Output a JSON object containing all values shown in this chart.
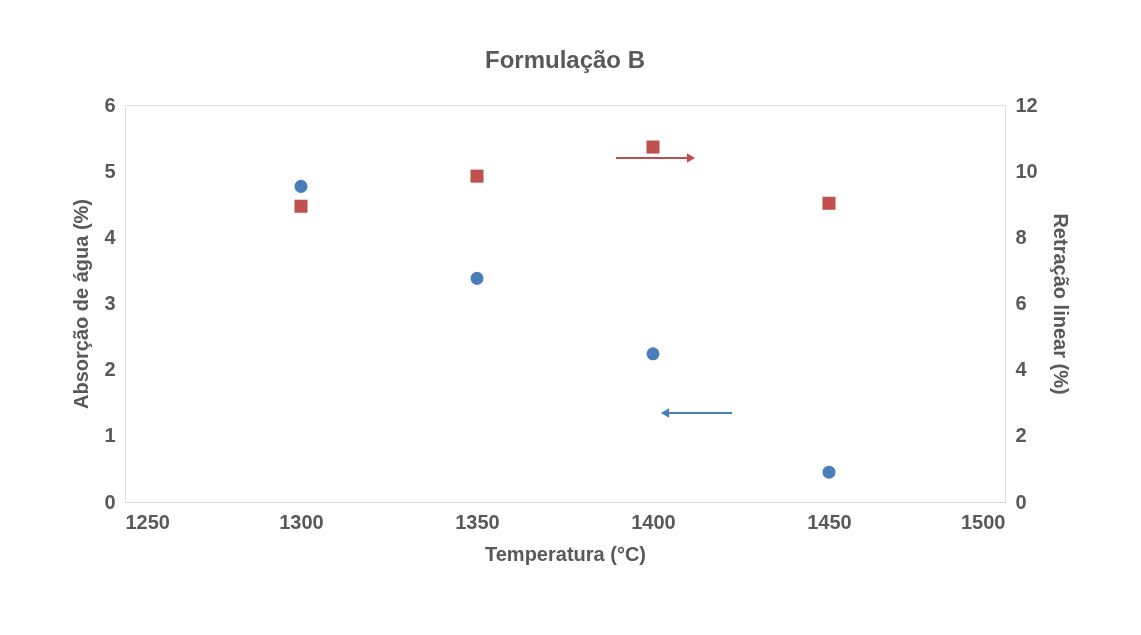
{
  "chart_data": {
    "type": "scatter",
    "title": "Formulação B",
    "xlabel": "Temperatura (°C)",
    "ylabel": "Absorção de água (%)",
    "y2label": "Retração linear (%)",
    "x": [
      1300,
      1350,
      1400,
      1450
    ],
    "series": [
      {
        "color": "#4a7ebb",
        "marker": "circle",
        "values": [
          4.77,
          3.38,
          2.24,
          0.45
        ]
      },
      {
        "color": "#c0504d",
        "marker": "square",
        "axis": "y2",
        "values": [
          8.94,
          9.85,
          10.73,
          9.03
        ]
      }
    ],
    "xlim": [
      1250,
      1500
    ],
    "xticks": [
      1250,
      1300,
      1350,
      1400,
      1450,
      1500
    ],
    "ylim": [
      0,
      6
    ],
    "yticks": [
      0,
      1,
      2,
      3,
      4,
      5,
      6
    ],
    "y2lim": [
      0,
      12
    ],
    "y2ticks": [
      0,
      2,
      4,
      6,
      8,
      10,
      12
    ],
    "grid": false
  }
}
